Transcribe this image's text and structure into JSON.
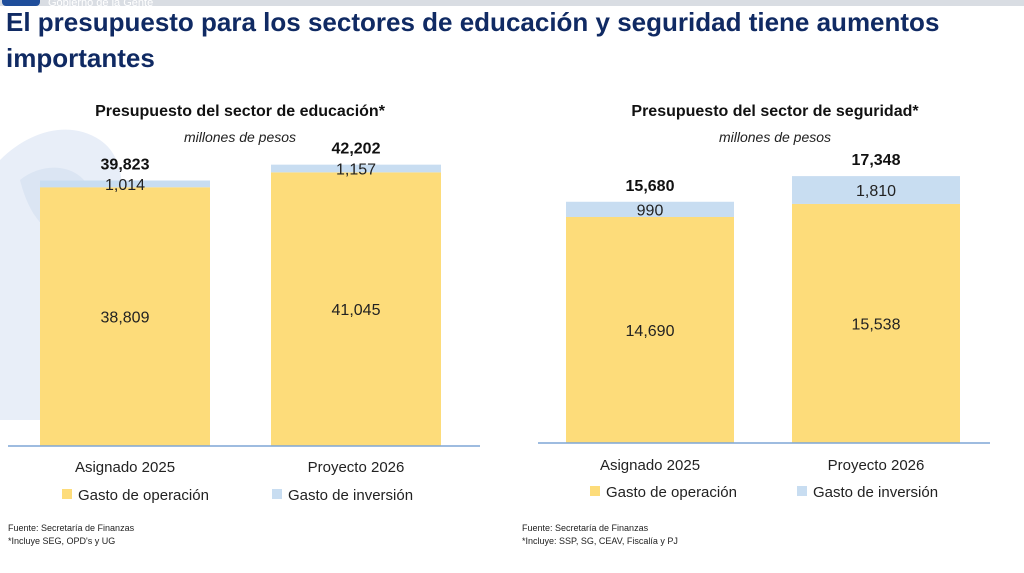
{
  "header": {
    "watermark": "Gobierno de la Gente",
    "title": "El presupuesto para los sectores de educación y seguridad tiene aumentos importantes"
  },
  "chart_data": [
    {
      "type": "bar",
      "stacked": true,
      "title": "Presupuesto del sector de educación*",
      "subtitle": "millones de pesos",
      "categories": [
        "Asignado 2025",
        "Proyecto 2026"
      ],
      "series": [
        {
          "name": "Gasto de operación",
          "values": [
            38809,
            41045
          ],
          "labels": [
            "38,809",
            "41,045"
          ],
          "color": "#fddc7a"
        },
        {
          "name": "Gasto de inversión",
          "values": [
            1014,
            1157
          ],
          "labels": [
            "1,014",
            "1,157"
          ],
          "color": "#c8ddf1"
        }
      ],
      "totals": [
        "39,823",
        "42,202"
      ],
      "ylim": [
        0,
        48000
      ],
      "legend_position": "bottom",
      "source": "Fuente: Secretaría de Finanzas",
      "note": "*Incluye SEG, OPD's y UG"
    },
    {
      "type": "bar",
      "stacked": true,
      "title": "Presupuesto del sector de seguridad*",
      "subtitle": "millones de pesos",
      "categories": [
        "Asignado 2025",
        "Proyecto 2026"
      ],
      "series": [
        {
          "name": "Gasto de operación",
          "values": [
            14690,
            15538
          ],
          "labels": [
            "14,690",
            "15,538"
          ],
          "color": "#fddc7a"
        },
        {
          "name": "Gasto de inversión",
          "values": [
            990,
            1810
          ],
          "labels": [
            "990",
            "1,810"
          ],
          "color": "#c8ddf1"
        }
      ],
      "totals": [
        "15,680",
        "17,348"
      ],
      "ylim": [
        0,
        19500
      ],
      "legend_position": "bottom",
      "source": "Fuente: Secretaría de Finanzas",
      "note": "*Incluye: SSP, SG, CEAV, Fiscalía y PJ"
    }
  ]
}
